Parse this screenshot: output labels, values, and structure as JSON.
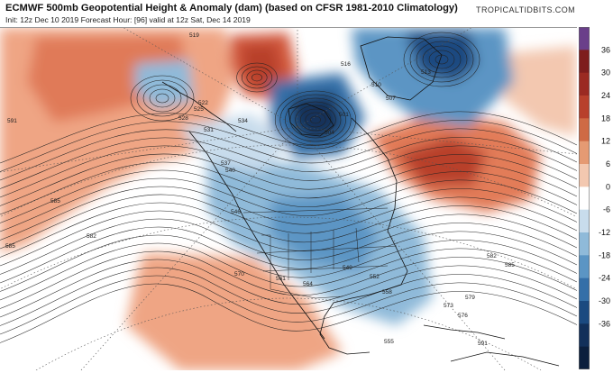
{
  "header": {
    "title": "ECMWF 500mb Geopotential Height & Anomaly (dam) (based on CFSR 1981-2010 Climatology)",
    "subtitle": "Init: 12z Dec 10 2019   Forecast Hour: [96]   valid at 12z Sat, Dec 14 2019",
    "brand": "TROPICALTIDBITS.COM"
  },
  "colorbar": {
    "ticks": [
      "36",
      "30",
      "24",
      "18",
      "12",
      "6",
      "0",
      "-6",
      "-12",
      "-18",
      "-24",
      "-30",
      "-36"
    ],
    "colors": [
      "#6a3f8a",
      "#7e1d1d",
      "#9b2a22",
      "#b8402c",
      "#cf6a45",
      "#e59a73",
      "#f3c8b0",
      "#ffffff",
      "#c8dcec",
      "#8fbad9",
      "#5b95c4",
      "#346fa8",
      "#1b4a80",
      "#12305a",
      "#0b1f3d"
    ]
  },
  "contour_labels": [
    {
      "text": "519"
    },
    {
      "text": "522"
    },
    {
      "text": "525"
    },
    {
      "text": "528"
    },
    {
      "text": "531"
    },
    {
      "text": "534"
    },
    {
      "text": "537"
    },
    {
      "text": "540"
    },
    {
      "text": "546"
    },
    {
      "text": "591"
    },
    {
      "text": "585"
    },
    {
      "text": "582"
    },
    {
      "text": "579"
    },
    {
      "text": "576"
    },
    {
      "text": "573"
    },
    {
      "text": "570"
    },
    {
      "text": "564"
    },
    {
      "text": "561"
    },
    {
      "text": "558"
    },
    {
      "text": "552"
    },
    {
      "text": "549"
    },
    {
      "text": "516"
    },
    {
      "text": "513"
    },
    {
      "text": "510"
    },
    {
      "text": "507"
    },
    {
      "text": "501"
    },
    {
      "text": "504"
    },
    {
      "text": "585"
    },
    {
      "text": "582"
    },
    {
      "text": "585"
    },
    {
      "text": "555"
    },
    {
      "text": "591"
    }
  ]
}
